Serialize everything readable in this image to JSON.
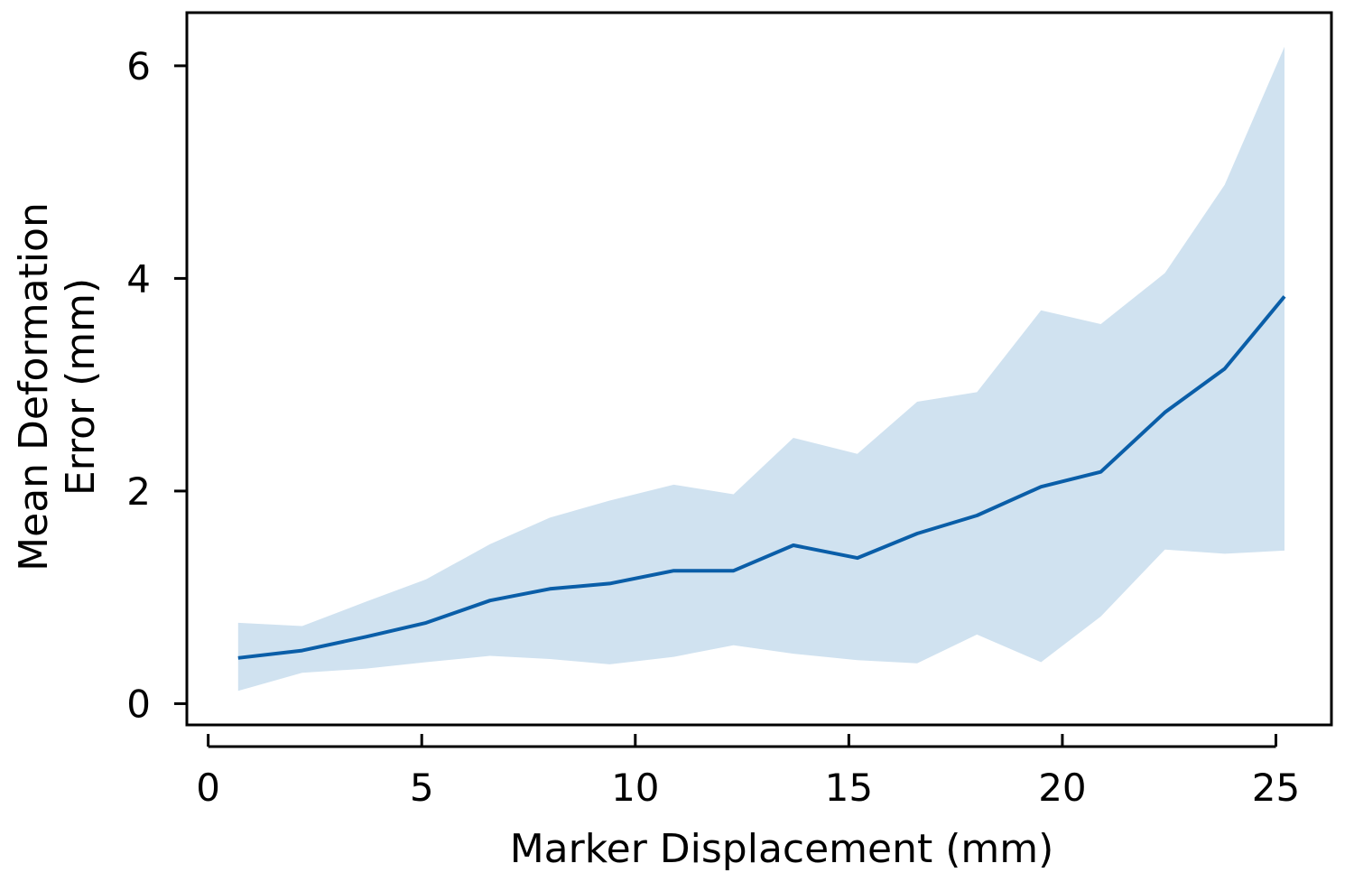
{
  "chart_data": {
    "type": "line",
    "title": "",
    "xlabel": "Marker Displacement (mm)",
    "ylabel_lines": [
      "Mean Deformation",
      "Error (mm)"
    ],
    "xlim": [
      -0.5,
      26.3
    ],
    "ylim": [
      -0.2,
      6.5
    ],
    "x_ticks": [
      0,
      5,
      10,
      15,
      20,
      25
    ],
    "y_ticks": [
      0,
      2,
      4,
      6
    ],
    "grid": false,
    "legend": "none",
    "series": [
      {
        "x": [
          0.7,
          2.2,
          3.7,
          5.1,
          6.6,
          8.0,
          9.4,
          10.9,
          12.3,
          13.7,
          15.2,
          16.6,
          18.0,
          19.5,
          20.9,
          22.4,
          23.8,
          25.2
        ],
        "mean": [
          0.43,
          0.5,
          0.63,
          0.76,
          0.97,
          1.08,
          1.13,
          1.25,
          1.25,
          1.49,
          1.37,
          1.6,
          1.77,
          2.04,
          2.18,
          2.74,
          3.15,
          3.83
        ],
        "upper": [
          0.76,
          0.73,
          0.96,
          1.17,
          1.5,
          1.75,
          1.91,
          2.06,
          1.97,
          2.5,
          2.35,
          2.84,
          2.93,
          3.7,
          3.57,
          4.05,
          4.88,
          6.18
        ],
        "lower": [
          0.12,
          0.29,
          0.33,
          0.39,
          0.45,
          0.42,
          0.37,
          0.44,
          0.55,
          0.47,
          0.41,
          0.38,
          0.65,
          0.39,
          0.82,
          1.45,
          1.41,
          1.44
        ]
      }
    ],
    "colors": {
      "line": "#0a5ea8",
      "band": "#d0e2f0"
    }
  }
}
